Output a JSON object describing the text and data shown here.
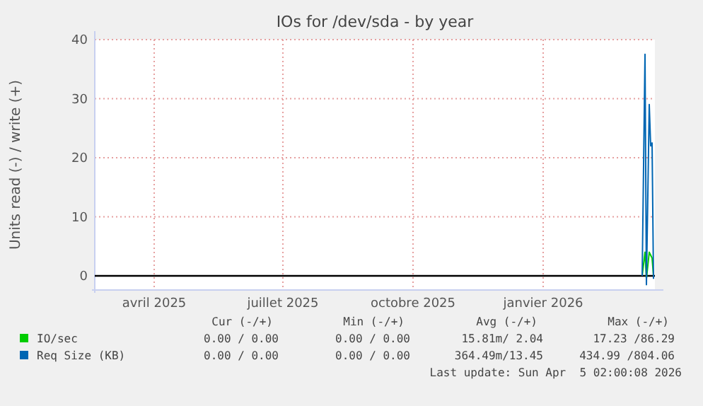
{
  "chart_data": {
    "type": "line",
    "title": "IOs for /dev/sda - by year",
    "ylabel": "Units read (-) / write (+)",
    "xlim": [
      "2025-03-05",
      "2026-04-05"
    ],
    "xticks": [
      {
        "value": "2025-04-16",
        "label": "avril 2025"
      },
      {
        "value": "2025-07-16",
        "label": "juillet 2025"
      },
      {
        "value": "2025-10-16",
        "label": "octobre 2025"
      },
      {
        "value": "2026-01-16",
        "label": "janvier 2026"
      }
    ],
    "ylim": [
      -2.4,
      40
    ],
    "yticks": [
      0,
      10,
      20,
      30,
      40
    ],
    "grid": true,
    "legend": "bottom",
    "ref_lines": [
      {
        "axis": "y",
        "value": 0,
        "color": "#000000"
      }
    ],
    "series": [
      {
        "name": "IO/sec",
        "color": "#00cc00",
        "x": [
          "2026-03-27",
          "2026-03-29",
          "2026-03-30",
          "2026-04-01",
          "2026-04-02",
          "2026-04-03",
          "2026-04-04"
        ],
        "values": [
          0,
          4,
          -0.5,
          4,
          3.5,
          3,
          0
        ]
      },
      {
        "name": "Req Size (KB)",
        "color": "#0066b3",
        "x": [
          "2026-03-27",
          "2026-03-29",
          "2026-03-30",
          "2026-04-01",
          "2026-04-02",
          "2026-04-03",
          "2026-04-04"
        ],
        "values": [
          0,
          37.5,
          -1.5,
          29,
          22,
          22.5,
          -0.5
        ]
      }
    ],
    "annotations": [
      "Cur (-/+)",
      "Min (-/+)",
      "Avg (-/+)",
      "Max (-/+)",
      "0.00 / 0.00",
      "0.00 / 0.00",
      "15.81m/ 2.04",
      "17.23 /86.29",
      "0.00 / 0.00",
      "0.00 / 0.00",
      "364.49m/13.45",
      "434.99 /804.06",
      "Last update: Sun Apr  5 02:00:08 2026"
    ]
  }
}
